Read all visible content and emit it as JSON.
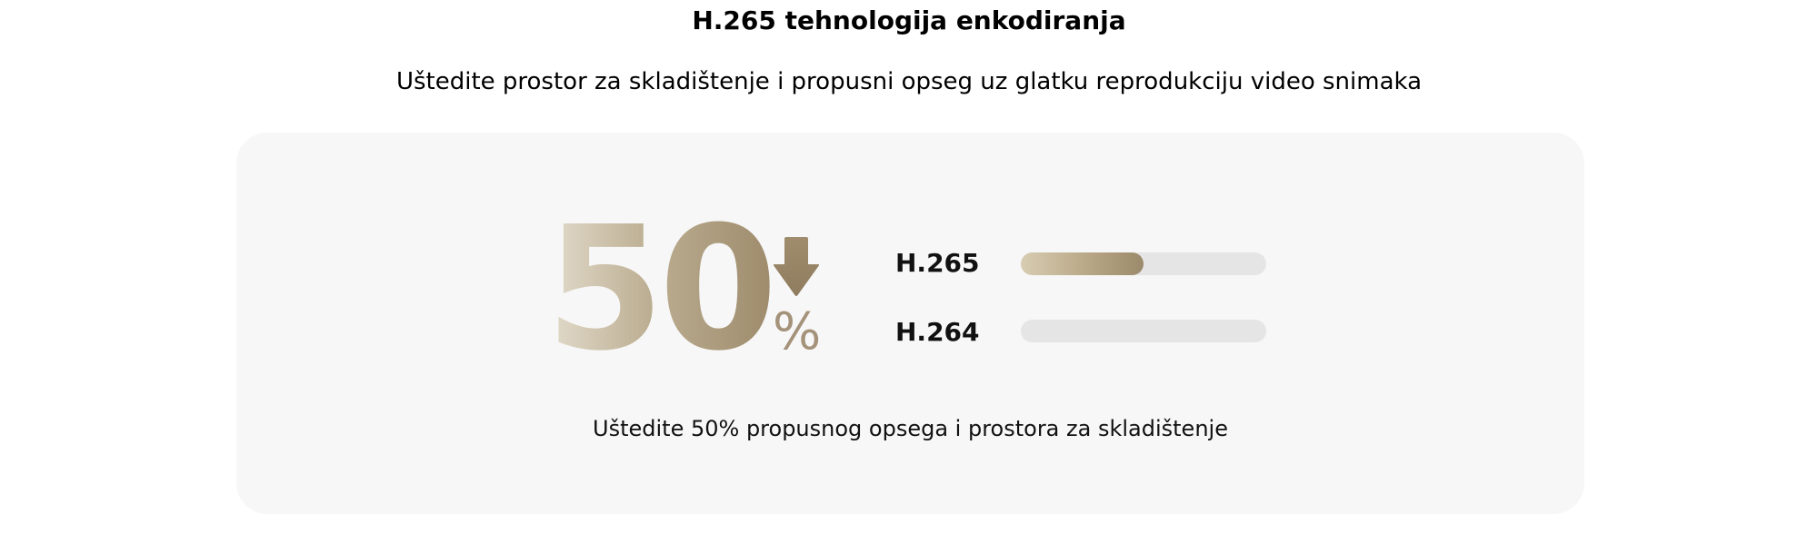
{
  "header": {
    "title": "H.265 tehnologija enkodiranja",
    "subtitle": "Uštedite prostor za skladištenje i propusni opseg uz glatku reprodukciju video snimaka"
  },
  "stat": {
    "value": "50",
    "unit": "%",
    "direction_icon": "down-arrow-icon"
  },
  "comparison": [
    {
      "label": "H.265",
      "fill_fraction": 0.5
    },
    {
      "label": "H.264",
      "fill_fraction": 0
    }
  ],
  "caption": "Uštedite 50% propusnog opsega i prostora za skladištenje",
  "colors": {
    "accent_light": "#e3dccd",
    "accent_dark": "#9b8a6b",
    "track": "#e5e5e5",
    "card_bg": "#f7f7f7"
  }
}
